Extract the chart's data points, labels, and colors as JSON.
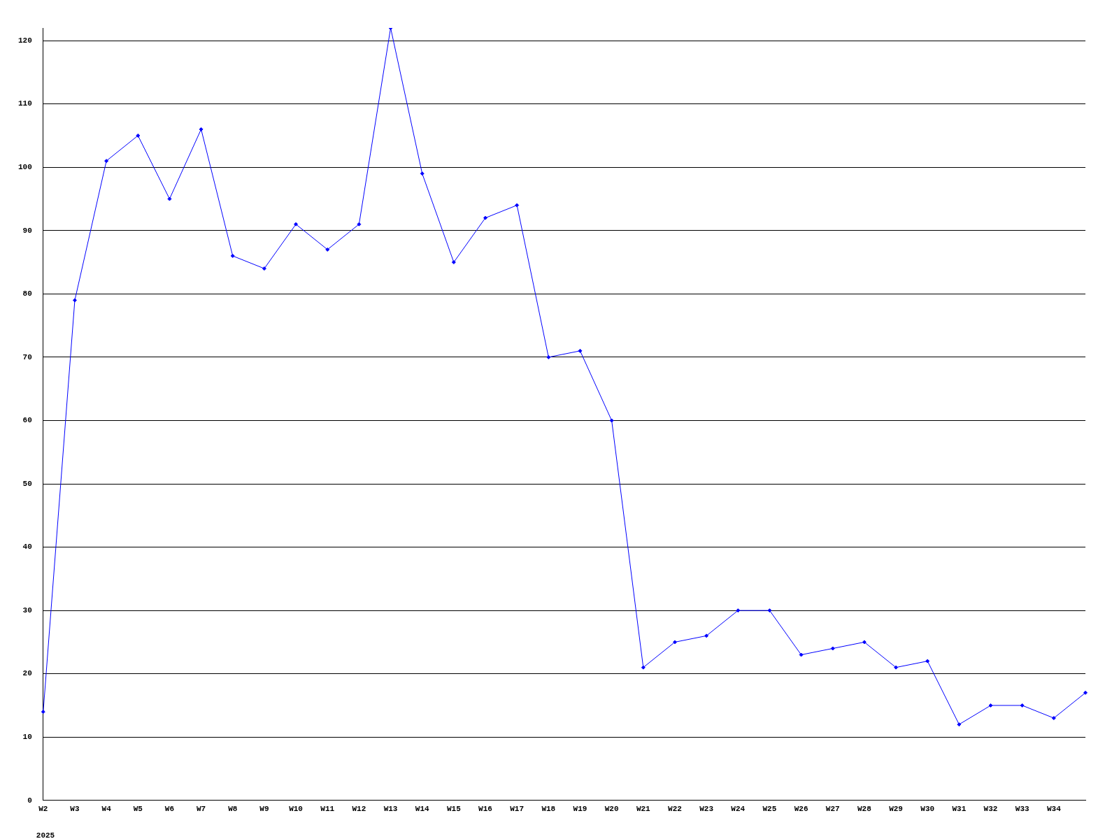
{
  "chart_data": {
    "type": "line",
    "categories": [
      "W2",
      "W3",
      "W4",
      "W5",
      "W6",
      "W7",
      "W8",
      "W9",
      "W10",
      "W11",
      "W12",
      "W13",
      "W14",
      "W15",
      "W16",
      "W17",
      "W18",
      "W19",
      "W20",
      "W21",
      "W22",
      "W23",
      "W24",
      "W25",
      "W26",
      "W27",
      "W28",
      "W29",
      "W30",
      "W31",
      "W32",
      "W33",
      "W34",
      null
    ],
    "series": [
      {
        "color": "#0000ff",
        "values": [
          14,
          79,
          101,
          105,
          95,
          106,
          86,
          84,
          91,
          87,
          91,
          122,
          99,
          85,
          92,
          94,
          70,
          71,
          60,
          21,
          25,
          26,
          30,
          30,
          23,
          24,
          25,
          21,
          22,
          12,
          15,
          15,
          13,
          17
        ]
      }
    ],
    "ylim": [
      0,
      122
    ],
    "yticks": [
      0,
      10,
      20,
      30,
      40,
      50,
      60,
      70,
      80,
      90,
      100,
      110,
      120
    ],
    "grid": "y",
    "marker": "diamond",
    "line_style": "solid",
    "legend": false,
    "annotations": [
      "2025"
    ]
  }
}
